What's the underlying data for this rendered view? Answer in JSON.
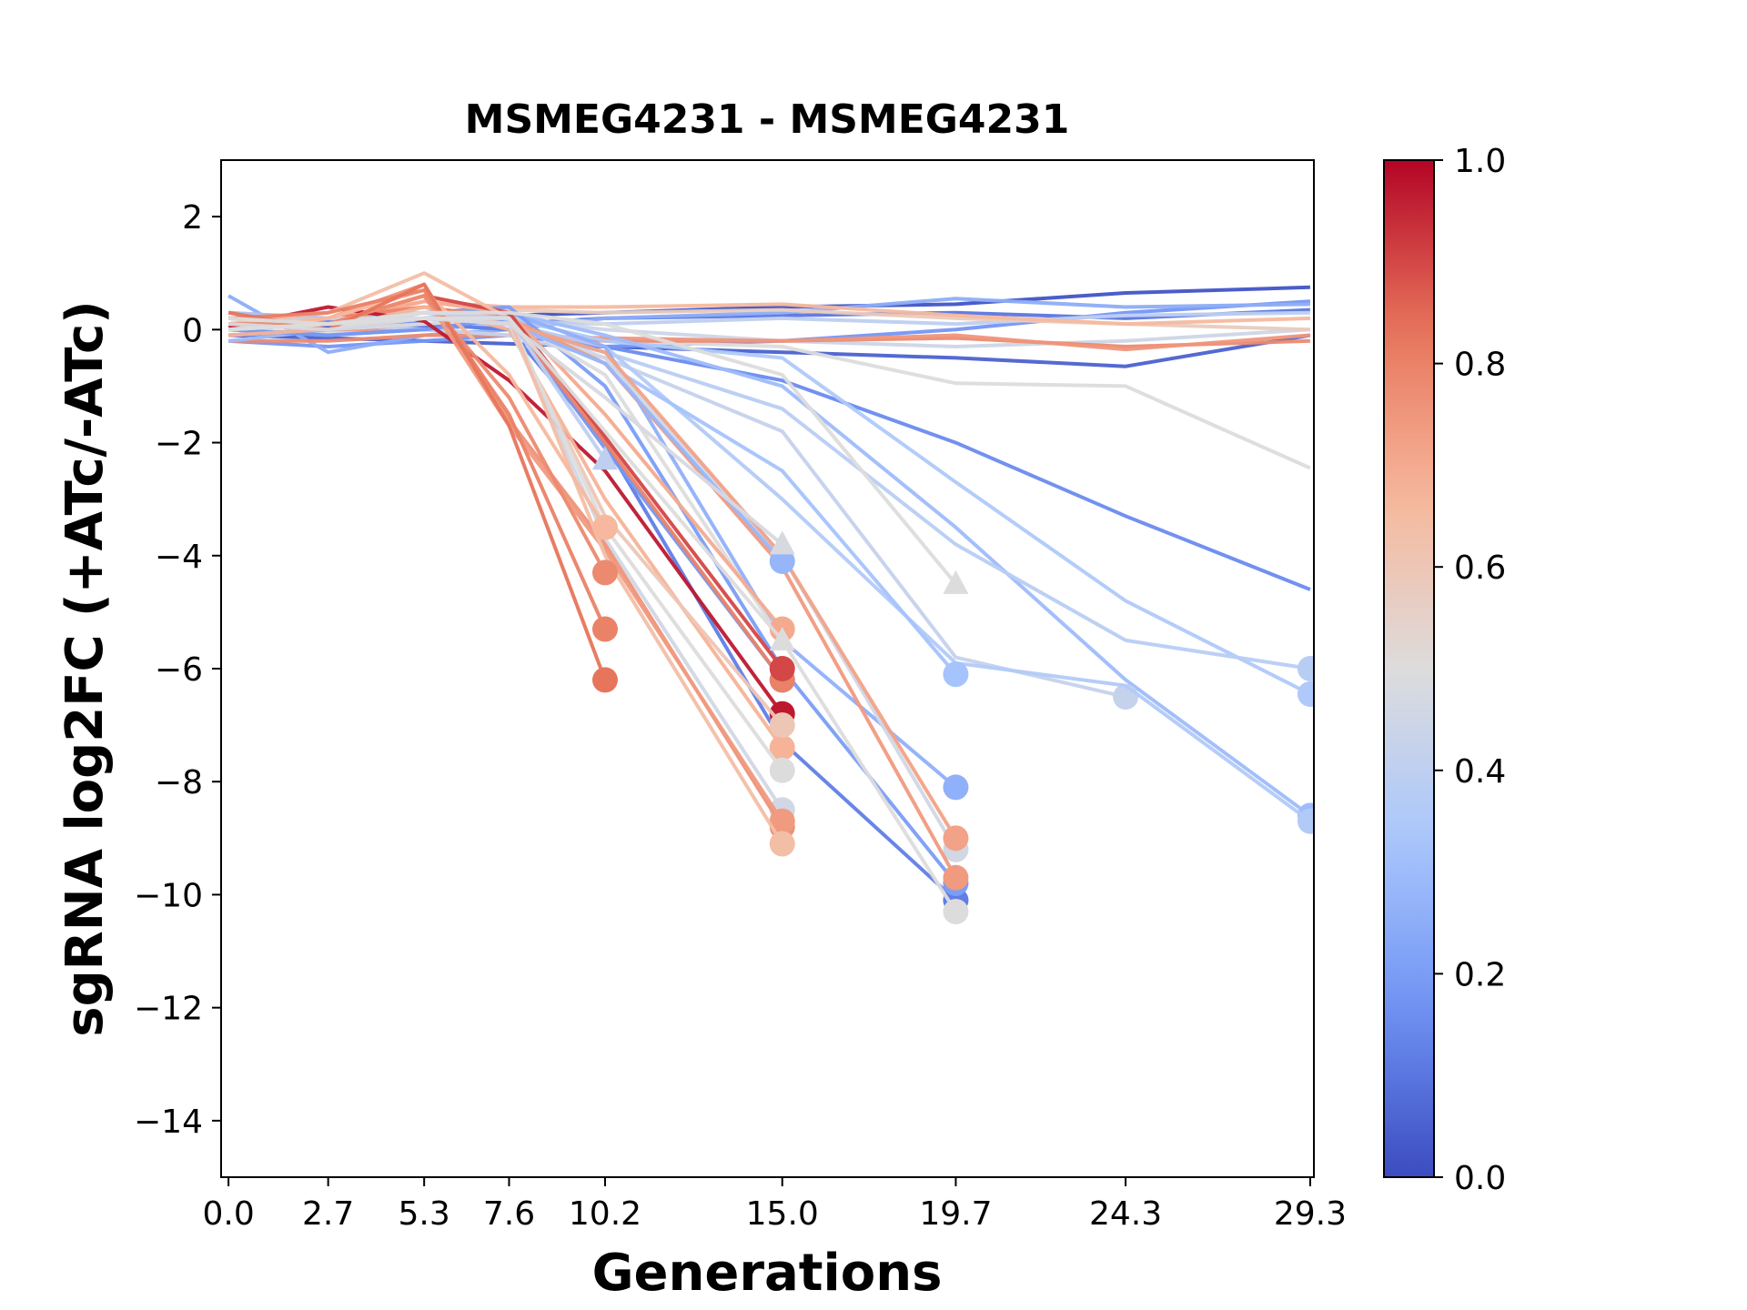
{
  "chart_data": {
    "type": "line",
    "title": "MSMEG4231 - MSMEG4231",
    "xlabel": "Generations",
    "ylabel": "sgRNA log2FC (+ATc/-ATc)",
    "xticks": [
      "0.0",
      "2.7",
      "5.3",
      "7.6",
      "10.2",
      "15.0",
      "19.7",
      "24.3",
      "29.3"
    ],
    "xtick_values": [
      0.0,
      2.7,
      5.3,
      7.6,
      10.2,
      15.0,
      19.7,
      24.3,
      29.3
    ],
    "xlim": [
      -0.2,
      29.4
    ],
    "yticks": [
      2,
      0,
      -2,
      -4,
      -6,
      -8,
      -10,
      -12,
      -14
    ],
    "ytick_labels": [
      "2",
      "0",
      "−2",
      "−4",
      "−6",
      "−8",
      "−10",
      "−12",
      "−14"
    ],
    "ylim": [
      -15,
      3
    ],
    "grid": false,
    "colorbar": {
      "ticks": [
        0.0,
        0.2,
        0.4,
        0.6,
        0.8,
        1.0
      ],
      "tick_labels": [
        "0.0",
        "0.2",
        "0.4",
        "0.6",
        "0.8",
        "1.0"
      ],
      "colormap": "coolwarm",
      "colors": [
        "#3b4cc0",
        "#6f92f3",
        "#aac7fd",
        "#dddcdc",
        "#f7b89c",
        "#e7745b",
        "#b40426"
      ]
    },
    "series": [
      {
        "c": 0.02,
        "marker": "none",
        "x": [
          0.0,
          2.7,
          5.3,
          7.6,
          10.2,
          15.0,
          19.7,
          24.3,
          29.3
        ],
        "y": [
          0.1,
          0.05,
          0.2,
          0.25,
          0.3,
          0.4,
          0.45,
          0.65,
          0.75
        ]
      },
      {
        "c": 0.05,
        "marker": "none",
        "x": [
          0.0,
          2.7,
          5.3,
          7.6,
          10.2,
          15.0,
          19.7,
          24.3,
          29.3
        ],
        "y": [
          -0.1,
          -0.15,
          -0.2,
          -0.25,
          -0.3,
          -0.4,
          -0.5,
          -0.65,
          -0.1
        ]
      },
      {
        "c": 0.1,
        "marker": "none",
        "x": [
          0.0,
          2.7,
          5.3,
          7.6,
          10.2,
          15.0,
          19.7,
          24.3,
          29.3
        ],
        "y": [
          0.0,
          0.1,
          0.05,
          0.1,
          0.2,
          0.25,
          0.3,
          0.2,
          0.35
        ]
      },
      {
        "c": 0.15,
        "marker": "none",
        "x": [
          0.0,
          2.7,
          5.3,
          7.6,
          10.2,
          15.0,
          19.7,
          24.3,
          29.3
        ],
        "y": [
          0.2,
          0.15,
          0.1,
          0.0,
          -0.3,
          -0.9,
          -2.0,
          -3.3,
          -4.6
        ]
      },
      {
        "c": 0.18,
        "marker": "none",
        "x": [
          0.0,
          2.7,
          5.3,
          7.6,
          10.2,
          15.0,
          19.7,
          24.3,
          29.3
        ],
        "y": [
          -0.2,
          -0.3,
          -0.2,
          -0.1,
          -0.3,
          -0.2,
          0.0,
          0.3,
          0.5
        ]
      },
      {
        "c": 0.25,
        "marker": "none",
        "x": [
          0.0,
          2.7,
          5.3,
          7.6,
          10.2,
          15.0,
          19.7,
          24.3,
          29.3
        ],
        "y": [
          0.6,
          -0.4,
          -0.1,
          0.0,
          0.2,
          0.3,
          0.55,
          0.4,
          0.45
        ]
      },
      {
        "c": 0.4,
        "marker": "none",
        "x": [
          0.0,
          2.7,
          5.3,
          7.6,
          10.2,
          15.0,
          19.7,
          24.3,
          29.3
        ],
        "y": [
          -0.1,
          0.0,
          0.1,
          0.15,
          0.1,
          0.2,
          0.1,
          0.25,
          0.3
        ]
      },
      {
        "c": 0.45,
        "marker": "none",
        "x": [
          0.0,
          2.7,
          5.3,
          7.6,
          10.2,
          15.0,
          19.7,
          24.3,
          29.3
        ],
        "y": [
          0.1,
          0.2,
          0.3,
          0.2,
          0.0,
          -0.2,
          -0.3,
          -0.2,
          0.0
        ]
      },
      {
        "c": 0.5,
        "marker": "none",
        "x": [
          0.0,
          2.7,
          5.3,
          7.6,
          10.2,
          15.0,
          19.7,
          24.3,
          29.3
        ],
        "y": [
          0.0,
          -0.05,
          0.0,
          -0.1,
          -0.2,
          -0.3,
          -0.95,
          -1.0,
          -2.45
        ]
      },
      {
        "c": 0.58,
        "marker": "none",
        "x": [
          0.0,
          2.7,
          5.3,
          7.6,
          10.2,
          15.0,
          19.7,
          24.3,
          29.3
        ],
        "y": [
          0.2,
          0.1,
          0.3,
          0.35,
          0.3,
          0.35,
          0.2,
          0.1,
          0.0
        ]
      },
      {
        "c": 0.66,
        "marker": "none",
        "x": [
          0.0,
          2.7,
          5.3,
          7.6,
          10.2,
          15.0,
          19.7,
          24.3,
          29.3
        ],
        "y": [
          0.3,
          0.2,
          0.5,
          0.4,
          0.4,
          0.45,
          0.25,
          0.1,
          0.2
        ]
      },
      {
        "c": 0.78,
        "marker": "none",
        "x": [
          0.0,
          2.7,
          5.3,
          7.6,
          10.2,
          15.0,
          19.7,
          24.3,
          29.3
        ],
        "y": [
          -0.2,
          -0.2,
          -0.1,
          -0.1,
          -0.2,
          -0.2,
          -0.15,
          -0.3,
          -0.2
        ]
      },
      {
        "c": 0.75,
        "marker": "none",
        "x": [
          0.0,
          2.7,
          5.3,
          7.6,
          10.2,
          15.0,
          19.7,
          24.3,
          29.3
        ],
        "y": [
          -0.1,
          0.0,
          0.0,
          -0.1,
          -0.15,
          -0.2,
          -0.1,
          -0.35,
          -0.1
        ]
      },
      {
        "c": 0.35,
        "marker": "circle",
        "x": [
          0.0,
          2.7,
          5.3,
          7.6,
          10.2,
          15.0,
          19.7,
          24.3,
          29.3
        ],
        "y": [
          0.0,
          0.1,
          0.2,
          0.2,
          -0.2,
          -0.5,
          -2.7,
          -4.8,
          -6.45
        ]
      },
      {
        "c": 0.3,
        "marker": "circle",
        "x": [
          0.0,
          2.7,
          5.3,
          7.6,
          10.2,
          15.0,
          19.7,
          24.3,
          29.3
        ],
        "y": [
          -0.2,
          0.0,
          0.3,
          0.3,
          -0.1,
          -1.0,
          -3.5,
          -6.2,
          -8.6
        ]
      },
      {
        "c": 0.38,
        "marker": "circle",
        "x": [
          0.0,
          2.7,
          5.3,
          7.6,
          10.2,
          15.0,
          19.7,
          24.3,
          29.3
        ],
        "y": [
          0.1,
          0.1,
          0.2,
          0.0,
          -0.4,
          -1.4,
          -3.8,
          -5.5,
          -6.0
        ]
      },
      {
        "c": 0.42,
        "marker": "circle",
        "x": [
          0.0,
          2.7,
          5.3,
          7.6,
          10.2,
          15.0,
          19.7,
          24.3
        ],
        "y": [
          0.2,
          0.1,
          0.0,
          -0.1,
          -0.5,
          -1.8,
          -5.8,
          -6.5
        ]
      },
      {
        "c": 0.36,
        "marker": "circle",
        "x": [
          0.0,
          2.7,
          5.3,
          7.6,
          10.2,
          15.0,
          19.7,
          24.3,
          29.3
        ],
        "y": [
          0.0,
          -0.1,
          0.0,
          0.1,
          -0.3,
          -3.0,
          -5.9,
          -6.3,
          -8.7
        ]
      },
      {
        "c": 0.32,
        "marker": "circle",
        "x": [
          0.0,
          2.7,
          5.3,
          7.6,
          10.2,
          15.0,
          19.7
        ],
        "y": [
          0.3,
          0.2,
          0.3,
          0.2,
          -0.6,
          -2.5,
          -6.1
        ]
      },
      {
        "c": 0.26,
        "marker": "circle",
        "x": [
          0.0,
          2.7,
          5.3,
          7.6,
          10.2,
          15.0,
          19.7
        ],
        "y": [
          0.1,
          0.0,
          0.2,
          0.3,
          -0.3,
          -5.5,
          -8.1
        ]
      },
      {
        "c": 0.12,
        "marker": "circle",
        "x": [
          0.0,
          2.7,
          5.3,
          7.6,
          10.2,
          15.0,
          19.7
        ],
        "y": [
          -0.1,
          0.0,
          0.1,
          0.0,
          -2.0,
          -7.3,
          -10.1
        ]
      },
      {
        "c": 0.2,
        "marker": "circle",
        "x": [
          0.0,
          2.7,
          5.3,
          7.6,
          10.2,
          15.0,
          19.7
        ],
        "y": [
          0.2,
          0.1,
          0.3,
          0.4,
          -1.0,
          -6.0,
          -9.8
        ]
      },
      {
        "c": 0.46,
        "marker": "circle",
        "x": [
          0.0,
          2.7,
          5.3,
          7.6,
          10.2,
          15.0,
          19.7
        ],
        "y": [
          0.0,
          0.1,
          0.2,
          0.1,
          -0.5,
          -4.0,
          -9.2
        ]
      },
      {
        "c": 0.5,
        "marker": "circle",
        "x": [
          0.0,
          2.7,
          5.3,
          7.6,
          10.2,
          15.0,
          19.7
        ],
        "y": [
          0.1,
          0.0,
          0.1,
          0.2,
          -0.8,
          -5.5,
          -10.3
        ]
      },
      {
        "c": 0.74,
        "marker": "circle",
        "x": [
          0.0,
          2.7,
          5.3,
          7.6,
          10.2,
          15.0,
          19.7
        ],
        "y": [
          0.0,
          0.1,
          0.3,
          0.2,
          -0.6,
          -4.2,
          -9.7
        ]
      },
      {
        "c": 0.72,
        "marker": "circle",
        "x": [
          0.0,
          2.7,
          5.3,
          7.6,
          10.2,
          15.0,
          19.7
        ],
        "y": [
          0.1,
          0.0,
          0.2,
          0.1,
          -0.4,
          -4.0,
          -9.0
        ]
      },
      {
        "c": 0.28,
        "marker": "circle",
        "x": [
          0.0,
          2.7,
          5.3,
          7.6,
          10.2,
          15.0
        ],
        "y": [
          0.1,
          0.0,
          0.2,
          0.1,
          -0.6,
          -4.1
        ]
      },
      {
        "c": 0.18,
        "marker": "circle",
        "x": [
          0.0,
          2.7,
          5.3,
          7.6,
          10.2,
          15.0
        ],
        "y": [
          0.0,
          -0.1,
          0.0,
          0.2,
          -2.1,
          -6.2
        ]
      },
      {
        "c": 0.7,
        "marker": "circle",
        "x": [
          0.0,
          2.7,
          5.3,
          7.6,
          10.2,
          15.0
        ],
        "y": [
          0.2,
          0.1,
          0.5,
          0.3,
          -1.5,
          -5.3
        ]
      },
      {
        "c": 0.8,
        "marker": "circle",
        "x": [
          0.0,
          2.7,
          5.3,
          7.6,
          10.2,
          15.0
        ],
        "y": [
          0.1,
          0.2,
          0.4,
          0.2,
          -2.0,
          -6.2
        ]
      },
      {
        "c": 0.9,
        "marker": "circle",
        "x": [
          0.0,
          2.7,
          5.3,
          7.6,
          10.2,
          15.0
        ],
        "y": [
          0.0,
          0.1,
          0.6,
          0.3,
          -1.9,
          -6.0
        ]
      },
      {
        "c": 0.97,
        "marker": "circle",
        "x": [
          0.0,
          2.7,
          5.3,
          7.6,
          10.2,
          15.0
        ],
        "y": [
          0.05,
          0.4,
          0.15,
          -0.9,
          -2.5,
          -6.8
        ]
      },
      {
        "c": 0.68,
        "marker": "circle",
        "x": [
          0.0,
          2.7,
          5.3,
          7.6,
          10.2,
          15.0
        ],
        "y": [
          -0.1,
          0.0,
          0.4,
          0.0,
          -3.0,
          -7.4
        ]
      },
      {
        "c": 0.6,
        "marker": "circle",
        "x": [
          0.0,
          2.7,
          5.3,
          7.6,
          10.2,
          15.0
        ],
        "y": [
          0.0,
          0.1,
          0.3,
          0.1,
          -3.3,
          -7.0
        ]
      },
      {
        "c": 0.5,
        "marker": "circle",
        "x": [
          0.0,
          2.7,
          5.3,
          7.6,
          10.2,
          15.0
        ],
        "y": [
          0.2,
          0.0,
          0.3,
          0.2,
          -3.5,
          -7.8
        ]
      },
      {
        "c": 0.46,
        "marker": "circle",
        "x": [
          0.0,
          2.7,
          5.3,
          7.6,
          10.2,
          15.0
        ],
        "y": [
          0.1,
          0.2,
          0.2,
          0.1,
          -3.7,
          -8.5
        ]
      },
      {
        "c": 0.76,
        "marker": "circle",
        "x": [
          0.0,
          2.7,
          5.3,
          7.6,
          10.2,
          15.0
        ],
        "y": [
          0.0,
          0.2,
          0.8,
          -1.6,
          -3.8,
          -8.8
        ]
      },
      {
        "c": 0.74,
        "marker": "circle",
        "x": [
          0.0,
          2.7,
          5.3,
          7.6,
          10.2,
          15.0
        ],
        "y": [
          0.2,
          0.1,
          0.6,
          -1.7,
          -3.9,
          -8.7
        ]
      },
      {
        "c": 0.64,
        "marker": "circle",
        "x": [
          0.0,
          2.7,
          5.3,
          7.6,
          10.2,
          15.0
        ],
        "y": [
          0.1,
          0.3,
          1.0,
          0.2,
          -4.0,
          -9.1
        ]
      },
      {
        "c": 0.66,
        "marker": "circle",
        "x": [
          0.0,
          2.7,
          5.3,
          7.6,
          10.2
        ],
        "y": [
          0.0,
          0.2,
          0.7,
          -0.8,
          -3.5
        ]
      },
      {
        "c": 0.78,
        "marker": "circle",
        "x": [
          0.0,
          2.7,
          5.3,
          7.6,
          10.2
        ],
        "y": [
          0.1,
          0.1,
          0.6,
          -1.2,
          -4.3
        ]
      },
      {
        "c": 0.8,
        "marker": "circle",
        "x": [
          0.0,
          2.7,
          5.3,
          7.6,
          10.2
        ],
        "y": [
          0.2,
          0.3,
          0.7,
          -1.5,
          -5.3
        ]
      },
      {
        "c": 0.83,
        "marker": "circle",
        "x": [
          0.0,
          2.7,
          5.3,
          7.6,
          10.2
        ],
        "y": [
          0.3,
          0.0,
          0.8,
          -1.7,
          -6.2
        ]
      },
      {
        "c": 0.4,
        "marker": "triangle",
        "x": [
          0.0,
          2.7,
          5.3,
          7.6,
          10.2
        ],
        "y": [
          0.0,
          0.1,
          0.3,
          0.2,
          -2.3
        ]
      },
      {
        "c": 0.48,
        "marker": "triangle",
        "x": [
          0.0,
          2.7,
          5.3,
          7.6,
          10.2,
          15.0
        ],
        "y": [
          0.1,
          0.0,
          0.2,
          0.1,
          -1.2,
          -3.8
        ]
      },
      {
        "c": 0.5,
        "marker": "triangle",
        "x": [
          0.0,
          2.7,
          5.3,
          7.6,
          10.2,
          15.0
        ],
        "y": [
          0.0,
          0.1,
          0.2,
          0.2,
          -1.8,
          -5.5
        ]
      },
      {
        "c": 0.5,
        "marker": "triangle",
        "x": [
          0.0,
          2.7,
          5.3,
          7.6,
          10.2,
          15.0,
          19.7
        ],
        "y": [
          0.2,
          0.1,
          0.3,
          0.3,
          0.1,
          -0.8,
          -4.5
        ]
      }
    ]
  }
}
